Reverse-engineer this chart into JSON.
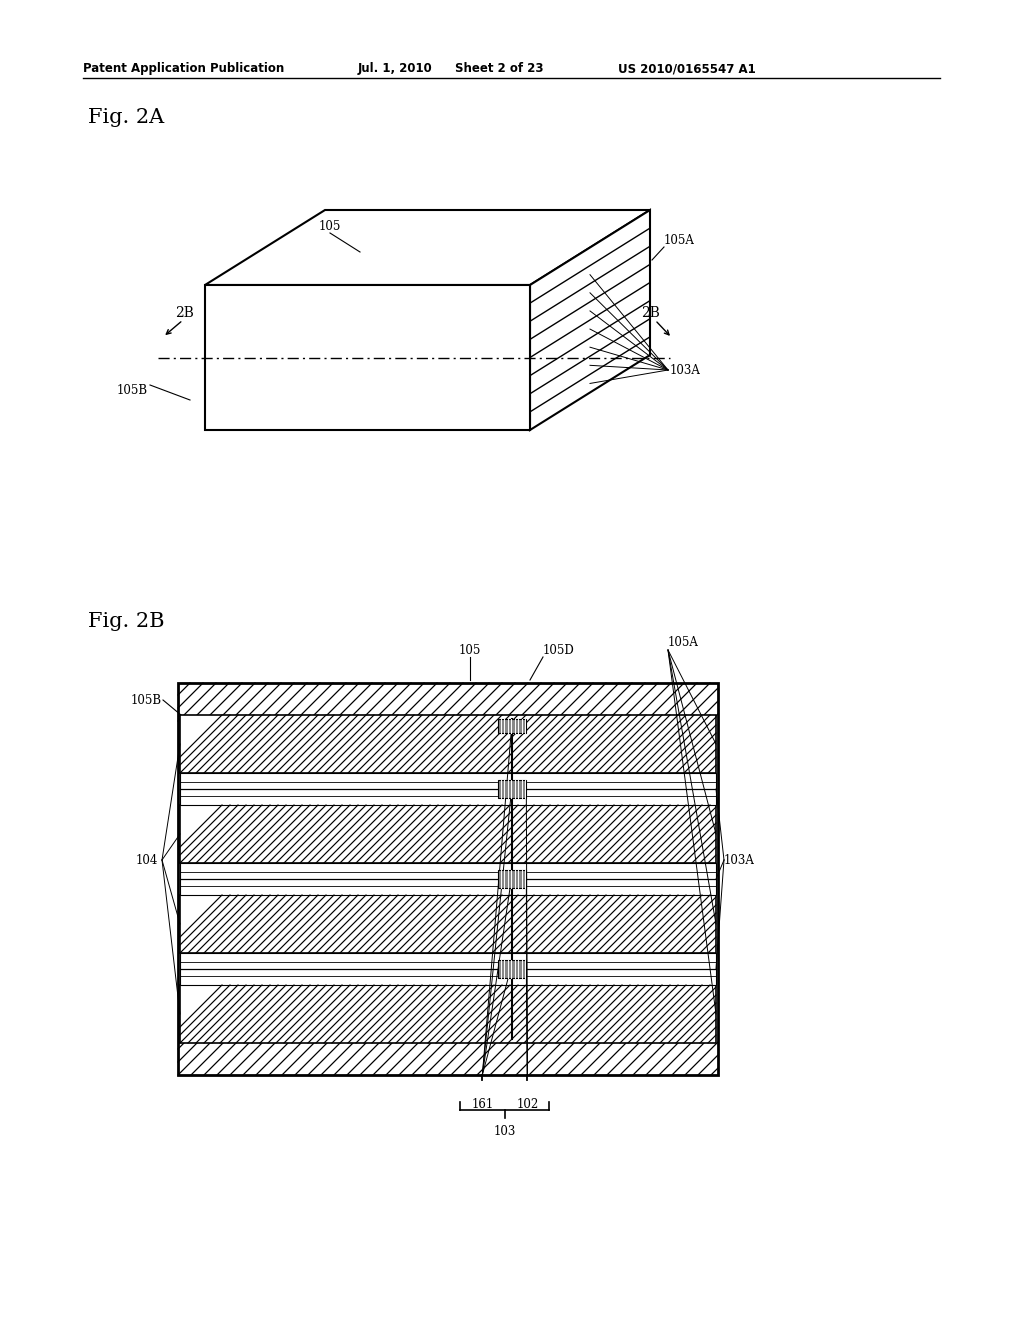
{
  "bg_color": "#ffffff",
  "header_text": "Patent Application Publication",
  "header_date": "Jul. 1, 2010",
  "header_sheet": "Sheet 2 of 23",
  "header_patent": "US 2010/0165547 A1",
  "fig2a_label": "Fig. 2A",
  "fig2b_label": "Fig. 2B",
  "line_color": "#000000"
}
